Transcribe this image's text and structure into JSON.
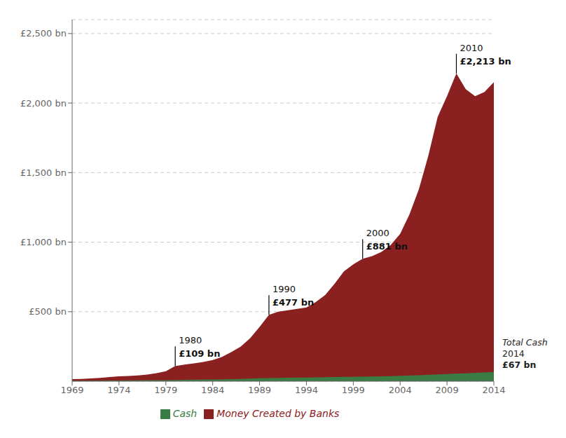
{
  "chart_data": {
    "type": "area",
    "stacked": false,
    "grid": true,
    "legend": "bottom",
    "x": [
      1969,
      1970,
      1971,
      1972,
      1973,
      1974,
      1975,
      1976,
      1977,
      1978,
      1979,
      1980,
      1981,
      1982,
      1983,
      1984,
      1985,
      1986,
      1987,
      1988,
      1989,
      1990,
      1991,
      1992,
      1993,
      1994,
      1995,
      1996,
      1997,
      1998,
      1999,
      2000,
      2001,
      2002,
      2003,
      2004,
      2005,
      2006,
      2007,
      2008,
      2009,
      2010,
      2011,
      2012,
      2013,
      2014
    ],
    "series": [
      {
        "name": "Money Created by Banks",
        "color": "#8B2020",
        "values": [
          15,
          17,
          20,
          24,
          30,
          35,
          38,
          42,
          48,
          58,
          72,
          109,
          120,
          128,
          138,
          152,
          175,
          210,
          250,
          310,
          390,
          477,
          500,
          510,
          520,
          530,
          570,
          620,
          700,
          790,
          840,
          881,
          900,
          930,
          980,
          1060,
          1200,
          1380,
          1620,
          1900,
          2050,
          2213,
          2100,
          2050,
          2080,
          2150
        ]
      },
      {
        "name": "Cash",
        "color": "#3A7D44",
        "values": [
          3,
          3,
          4,
          4,
          5,
          5,
          6,
          6,
          7,
          7,
          8,
          9,
          10,
          11,
          12,
          13,
          14,
          15,
          17,
          19,
          21,
          23,
          24,
          25,
          26,
          27,
          28,
          29,
          30,
          31,
          32,
          33,
          34,
          35,
          37,
          39,
          41,
          43,
          46,
          49,
          52,
          55,
          57,
          60,
          63,
          67
        ]
      }
    ],
    "xlim": [
      1969,
      2014
    ],
    "xticks": [
      1969,
      1974,
      1979,
      1984,
      1989,
      1994,
      1999,
      2004,
      2009,
      2014
    ],
    "ylim": [
      0,
      2600
    ],
    "yticks": [
      {
        "value": 500,
        "label": "£500 bn"
      },
      {
        "value": 1000,
        "label": "£1,000 bn"
      },
      {
        "value": 1500,
        "label": "£1,500 bn"
      },
      {
        "value": 2000,
        "label": "£2,000 bn"
      },
      {
        "value": 2500,
        "label": "£2,500 bn"
      }
    ],
    "annotations": [
      {
        "x": 1980,
        "y": 109,
        "text": [
          "1980",
          "£109 bn"
        ]
      },
      {
        "x": 1990,
        "y": 477,
        "text": [
          "1990",
          "£477 bn"
        ]
      },
      {
        "x": 2000,
        "y": 881,
        "text": [
          "2000",
          "£881 bn"
        ]
      },
      {
        "x": 2010,
        "y": 2213,
        "text": [
          "2010",
          "£2,213 bn"
        ]
      },
      {
        "x": 2014,
        "y": 67,
        "text": [
          "Total Cash",
          "2014",
          "£67 bn"
        ]
      }
    ]
  }
}
